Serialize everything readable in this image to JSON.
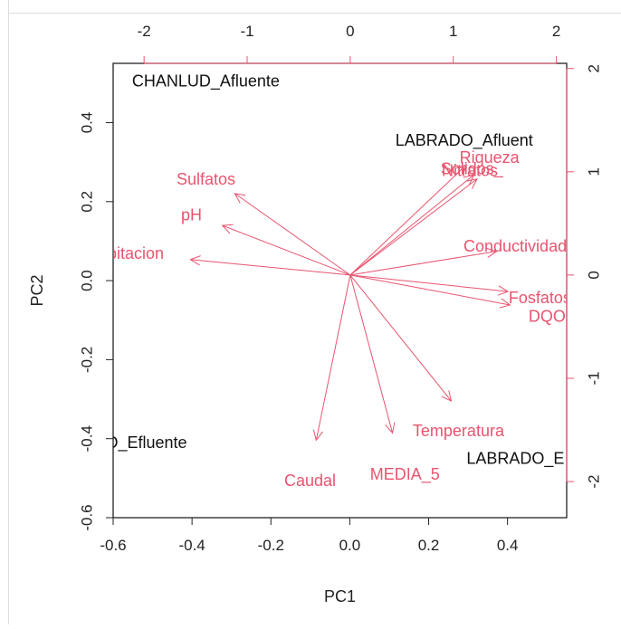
{
  "chart_data": {
    "type": "scatter",
    "variant": "biplot",
    "title": "",
    "xlabel": "PC1",
    "ylabel": "PC2",
    "xlim": [
      -0.6,
      0.55
    ],
    "ylim": [
      -0.6,
      0.55
    ],
    "x_ticks": [
      -0.6,
      -0.4,
      -0.2,
      0.0,
      0.2,
      0.4
    ],
    "y_ticks": [
      -0.6,
      -0.4,
      -0.2,
      0.0,
      0.2,
      0.4
    ],
    "x_tick_labels": [
      "-0.6",
      "-0.4",
      "-0.2",
      "0.0",
      "0.2",
      "0.4"
    ],
    "y_tick_labels": [
      "-0.6",
      "-0.4",
      "-0.2",
      "0.0",
      "0.2",
      "0.4"
    ],
    "loading_xlim": [
      -2.3,
      2.1
    ],
    "loading_ylim": [
      -2.35,
      2.05
    ],
    "top_ticks": [
      -2,
      -1,
      0,
      1,
      2
    ],
    "right_ticks": [
      -2,
      -1,
      0,
      1,
      2
    ],
    "top_tick_labels": [
      "-2",
      "-1",
      "0",
      "1",
      "2"
    ],
    "right_tick_labels": [
      "-2",
      "-1",
      "0",
      "1",
      "2"
    ],
    "observations": [
      {
        "label": "CHANLUD_Afluente",
        "x": -0.365,
        "y": 0.505
      },
      {
        "label": "LABRADO_Afluent",
        "x": 0.29,
        "y": 0.355
      },
      {
        "label": "UD_Efluente",
        "x": -0.53,
        "y": -0.41
      },
      {
        "label": "LABRADO_E",
        "x": 0.42,
        "y": -0.45
      }
    ],
    "loadings": [
      {
        "label": "Solidos_",
        "x": 1.18,
        "y": 1.03,
        "tip_x": 1.13,
        "tip_y": 1.07
      },
      {
        "label": "Riqueza",
        "x": 1.35,
        "y": 1.14,
        "tip_x": 1.2,
        "tip_y": 0.97
      },
      {
        "label": "Nitratos",
        "x": 1.16,
        "y": 1.01,
        "tip_x": 1.23,
        "tip_y": 0.93
      },
      {
        "label": "Sulfatos",
        "x": -1.4,
        "y": 0.93,
        "tip_x": -1.12,
        "tip_y": 0.79
      },
      {
        "label": "pH",
        "x": -1.54,
        "y": 0.58,
        "tip_x": -1.24,
        "tip_y": 0.48
      },
      {
        "label": "Precipitacion",
        "x": -2.26,
        "y": 0.21,
        "tip_x": -1.55,
        "tip_y": 0.15
      },
      {
        "label": "Conductividad",
        "x": 1.6,
        "y": 0.28,
        "tip_x": 1.42,
        "tip_y": 0.23
      },
      {
        "label": "Fosfatos",
        "x": 1.84,
        "y": -0.22,
        "tip_x": 1.53,
        "tip_y": -0.16
      },
      {
        "label": "DQO",
        "x": 1.91,
        "y": -0.4,
        "tip_x": 1.55,
        "tip_y": -0.29
      },
      {
        "label": "Temperatura",
        "x": 1.05,
        "y": -1.51,
        "tip_x": 0.98,
        "tip_y": -1.22
      },
      {
        "label": "Caudal",
        "x": -0.39,
        "y": -1.99,
        "tip_x": -0.33,
        "tip_y": -1.6
      },
      {
        "label": "MEDIA_5",
        "x": 0.53,
        "y": -1.93,
        "tip_x": 0.41,
        "tip_y": -1.53
      }
    ],
    "colors": {
      "loading": "#e8546e",
      "observation": "#111111",
      "axis": "#222222",
      "frame": "#dddddd"
    }
  }
}
